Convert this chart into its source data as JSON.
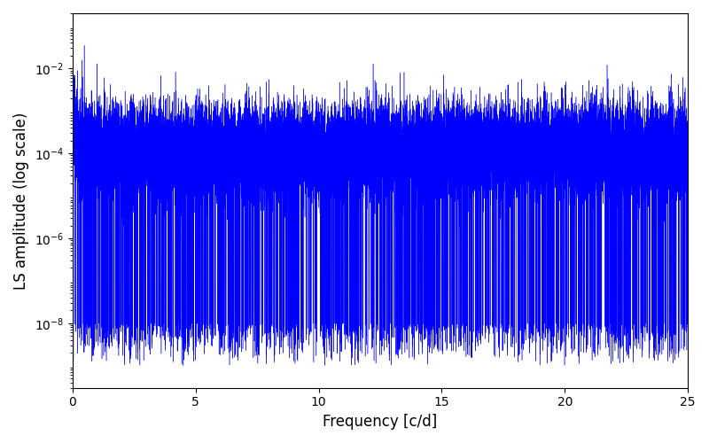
{
  "xlabel": "Frequency [c/d]",
  "ylabel": "LS amplitude (log scale)",
  "xlim": [
    0,
    25
  ],
  "ylim": [
    3e-10,
    0.15
  ],
  "ylim_display": [
    3e-10,
    0.15
  ],
  "line_color": "#0000ff",
  "line_width": 0.3,
  "background_color": "#ffffff",
  "n_points": 25000,
  "freq_max": 25.0,
  "seed": 12345,
  "noise_floor": 0.00012,
  "decay_exp": 2.0,
  "noise_sigma_log": 1.2,
  "deep_spike_prob": 0.003,
  "deep_spike_min": 1e-09,
  "deep_spike_max": 1e-08,
  "peak_freq": 0.48,
  "peak_amp": 0.035,
  "peak2_freq": 1.0,
  "peak2_amp": 0.013,
  "peak3_freq": 0.2,
  "peak3_amp": 0.009,
  "yticks": [
    1e-08,
    1e-06,
    0.0001,
    0.01
  ],
  "xticks": [
    0,
    5,
    10,
    15,
    20,
    25
  ]
}
